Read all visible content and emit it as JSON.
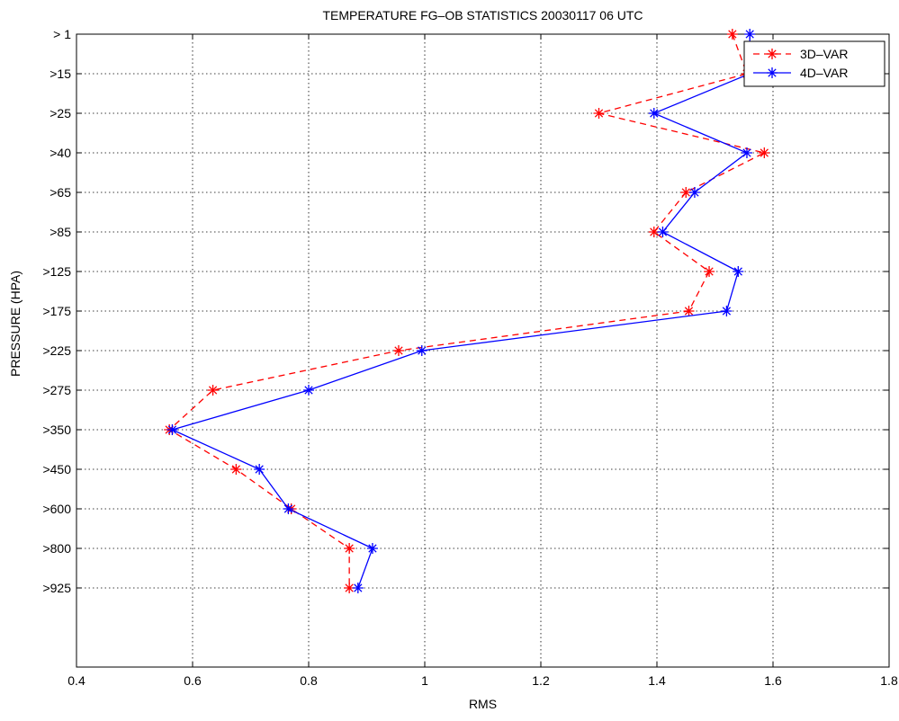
{
  "chart_data": {
    "type": "line",
    "title": "TEMPERATURE FG–OB STATISTICS 20030117 06 UTC",
    "xlabel": "RMS",
    "ylabel": "PRESSURE (HPA)",
    "xlim": [
      0.4,
      1.8
    ],
    "x_ticks": [
      "0.4",
      "0.6",
      "0.8",
      "1",
      "1.2",
      "1.4",
      "1.6",
      "1.8"
    ],
    "categories": [
      ">1",
      ">15",
      ">25",
      ">40",
      ">65",
      ">85",
      ">125",
      ">175",
      ">225",
      ">275",
      ">350",
      ">450",
      ">600",
      ">800",
      ">925"
    ],
    "category_labels": [
      "> 1",
      ">15",
      ">25",
      ">40",
      ">65",
      ">85",
      ">125",
      ">175",
      ">225",
      ">275",
      ">350",
      ">450",
      ">600",
      ">800",
      ">925"
    ],
    "grid": true,
    "legend_position": "top-right",
    "series": [
      {
        "name": "3D–VAR",
        "color": "#ff0000",
        "line_style": "dashed",
        "marker": "star",
        "values": [
          1.53,
          1.555,
          1.3,
          1.585,
          1.45,
          1.395,
          1.49,
          1.455,
          0.955,
          0.635,
          0.56,
          0.675,
          0.77,
          0.87,
          0.87
        ]
      },
      {
        "name": "4D–VAR",
        "color": "#0000ff",
        "line_style": "solid",
        "marker": "star",
        "values": [
          1.56,
          1.56,
          1.395,
          1.555,
          1.465,
          1.41,
          1.54,
          1.52,
          0.995,
          0.8,
          0.565,
          0.715,
          0.765,
          0.91,
          0.885
        ]
      }
    ]
  }
}
